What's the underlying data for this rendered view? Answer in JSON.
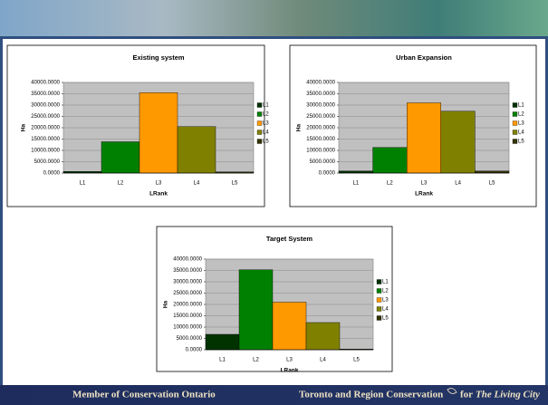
{
  "chart_data": [
    {
      "type": "bar",
      "title": "Existing system",
      "x_label": "LRank",
      "y_label": "Ha",
      "categories": [
        "L1",
        "L2",
        "L3",
        "L4",
        "L5"
      ],
      "values": [
        700,
        13800,
        35500,
        20500,
        500
      ],
      "colors": [
        "#003300",
        "#008000",
        "#ff9900",
        "#808000",
        "#333300"
      ],
      "ylim": [
        0,
        40000
      ],
      "yticks": [
        {
          "value": 0,
          "label": "0.0000"
        },
        {
          "value": 5000,
          "label": "5000.0000"
        },
        {
          "value": 10000,
          "label": "10000.0000"
        },
        {
          "value": 15000,
          "label": "15000.0000"
        },
        {
          "value": 20000,
          "label": "20000.0000"
        },
        {
          "value": 25000,
          "label": "25000.0000"
        },
        {
          "value": 30000,
          "label": "30000.0000"
        },
        {
          "value": 35000,
          "label": "35000.0000"
        },
        {
          "value": 40000,
          "label": "40000.0000"
        }
      ],
      "grid": true,
      "legend": "right"
    },
    {
      "type": "bar",
      "title": "Urban Expansion",
      "x_label": "LRank",
      "y_label": "Ha",
      "categories": [
        "L1",
        "L2",
        "L3",
        "L4",
        "L5"
      ],
      "values": [
        900,
        11300,
        31000,
        27300,
        900
      ],
      "colors": [
        "#003300",
        "#008000",
        "#ff9900",
        "#808000",
        "#333300"
      ],
      "ylim": [
        0,
        40000
      ],
      "yticks": [
        {
          "value": 0,
          "label": "0.0000"
        },
        {
          "value": 5000,
          "label": "5000.0000"
        },
        {
          "value": 10000,
          "label": "10000.0000"
        },
        {
          "value": 15000,
          "label": "15000.0000"
        },
        {
          "value": 20000,
          "label": "20000.0000"
        },
        {
          "value": 25000,
          "label": "25000.0000"
        },
        {
          "value": 30000,
          "label": "30000.0000"
        },
        {
          "value": 35000,
          "label": "35000.0000"
        },
        {
          "value": 40000,
          "label": "40000.0000"
        }
      ],
      "grid": true,
      "legend": "right"
    },
    {
      "type": "bar",
      "title": "Target System",
      "x_label": "LRank",
      "y_label": "Ha",
      "categories": [
        "L1",
        "L2",
        "L3",
        "L4",
        "L5"
      ],
      "values": [
        6800,
        35300,
        21000,
        12000,
        300
      ],
      "colors": [
        "#003300",
        "#008000",
        "#ff9900",
        "#808000",
        "#333300"
      ],
      "ylim": [
        0,
        40000
      ],
      "yticks": [
        {
          "value": 0,
          "label": "0.0000"
        },
        {
          "value": 5000,
          "label": "5000.0000"
        },
        {
          "value": 10000,
          "label": "10000.0000"
        },
        {
          "value": 15000,
          "label": "15000.0000"
        },
        {
          "value": 20000,
          "label": "20000.0000"
        },
        {
          "value": 25000,
          "label": "25000.0000"
        },
        {
          "value": 30000,
          "label": "30000.0000"
        },
        {
          "value": 35000,
          "label": "35000.0000"
        },
        {
          "value": 40000,
          "label": "40000.0000"
        }
      ],
      "grid": true,
      "legend": "right"
    }
  ],
  "footer": {
    "left": "Member of Conservation Ontario",
    "right": "Toronto and Region Conservation",
    "tagline_prefix": "for",
    "tagline": "The Living City"
  }
}
